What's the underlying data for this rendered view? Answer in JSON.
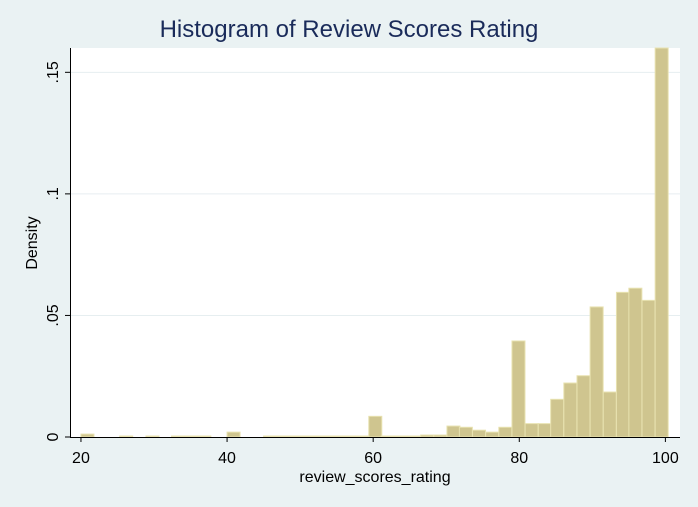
{
  "chart_data": {
    "type": "bar",
    "title": "Histogram of Review Scores Rating",
    "xlabel": "review_scores_rating",
    "ylabel": "Density",
    "xlim": [
      18.5,
      102
    ],
    "ylim": [
      0,
      0.16
    ],
    "x_ticks": [
      {
        "value": 20,
        "label": "20"
      },
      {
        "value": 40,
        "label": "40"
      },
      {
        "value": 60,
        "label": "60"
      },
      {
        "value": 80,
        "label": "80"
      },
      {
        "value": 100,
        "label": "100"
      }
    ],
    "y_ticks": [
      {
        "value": 0,
        "label": "0"
      },
      {
        "value": 0.05,
        "label": ".05"
      },
      {
        "value": 0.1,
        "label": ".1"
      },
      {
        "value": 0.15,
        "label": ".15"
      }
    ],
    "grid": true,
    "bar_fill": "#cfc58f",
    "bar_stroke": "#e8e2b0",
    "bin_width": 1.78,
    "bins": [
      {
        "start": 20.0,
        "density": 0.0012
      },
      {
        "start": 25.3,
        "density": 0.0004
      },
      {
        "start": 28.9,
        "density": 0.0004
      },
      {
        "start": 32.4,
        "density": 0.0004
      },
      {
        "start": 34.2,
        "density": 0.0004
      },
      {
        "start": 36.0,
        "density": 0.0004
      },
      {
        "start": 40.0,
        "density": 0.002
      },
      {
        "start": 45.0,
        "density": 0.0004
      },
      {
        "start": 46.8,
        "density": 0.0004
      },
      {
        "start": 48.6,
        "density": 0.0004
      },
      {
        "start": 50.4,
        "density": 0.0004
      },
      {
        "start": 52.2,
        "density": 0.0004
      },
      {
        "start": 54.0,
        "density": 0.0004
      },
      {
        "start": 55.8,
        "density": 0.0004
      },
      {
        "start": 57.6,
        "density": 0.0004
      },
      {
        "start": 59.4,
        "density": 0.0085
      },
      {
        "start": 61.1,
        "density": 0.0004
      },
      {
        "start": 62.9,
        "density": 0.0004
      },
      {
        "start": 64.7,
        "density": 0.0004
      },
      {
        "start": 66.5,
        "density": 0.0008
      },
      {
        "start": 68.3,
        "density": 0.0008
      },
      {
        "start": 70.1,
        "density": 0.0045
      },
      {
        "start": 71.8,
        "density": 0.004
      },
      {
        "start": 73.6,
        "density": 0.0028
      },
      {
        "start": 75.4,
        "density": 0.002
      },
      {
        "start": 77.2,
        "density": 0.004
      },
      {
        "start": 79.0,
        "density": 0.0395
      },
      {
        "start": 80.8,
        "density": 0.0055
      },
      {
        "start": 82.6,
        "density": 0.0055
      },
      {
        "start": 84.3,
        "density": 0.0155
      },
      {
        "start": 86.1,
        "density": 0.0222
      },
      {
        "start": 87.9,
        "density": 0.0252
      },
      {
        "start": 89.7,
        "density": 0.0535
      },
      {
        "start": 91.5,
        "density": 0.0185
      },
      {
        "start": 93.3,
        "density": 0.0595
      },
      {
        "start": 95.0,
        "density": 0.0612
      },
      {
        "start": 96.8,
        "density": 0.0562
      },
      {
        "start": 98.6,
        "density": 0.16
      }
    ]
  }
}
